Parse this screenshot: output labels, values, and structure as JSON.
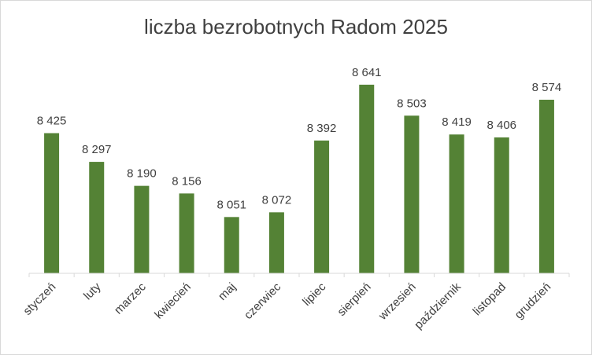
{
  "chart_data": {
    "type": "bar",
    "title": "liczba bezrobotnych  Radom 2025",
    "xlabel": "",
    "ylabel": "",
    "categories": [
      "styczeń",
      "luty",
      "marzec",
      "kwiecień",
      "maj",
      "czerwiec",
      "lipiec",
      "sierpień",
      "wrzesień",
      "październik",
      "listopad",
      "grudzień"
    ],
    "values": [
      8425,
      8297,
      8190,
      8156,
      8051,
      8072,
      8392,
      8641,
      8503,
      8419,
      8406,
      8574
    ],
    "value_labels": [
      "8 425",
      "8 297",
      "8 190",
      "8 156",
      "8 051",
      "8 072",
      "8 392",
      "8 641",
      "8 503",
      "8 419",
      "8 406",
      "8 574"
    ],
    "ylim": [
      7800,
      8700
    ],
    "grid": false,
    "legend": "none",
    "bar_color": "#548235",
    "axis_color": "#d9d9d9",
    "text_color": "#404040"
  }
}
